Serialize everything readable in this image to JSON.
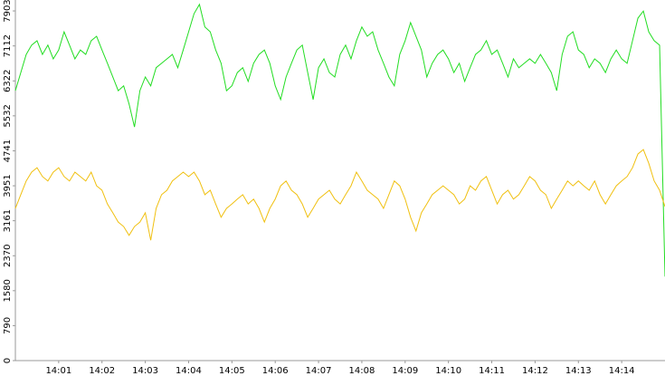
{
  "chart_data": {
    "type": "line",
    "xlim": [
      0,
      15
    ],
    "ylim": [
      0,
      8150
    ],
    "yticks": [
      0,
      790,
      1580,
      2370,
      3161,
      3951,
      4741,
      5532,
      6322,
      7112,
      7903
    ],
    "xticks": [
      {
        "value": 1,
        "label": "14:01"
      },
      {
        "value": 2,
        "label": "14:02"
      },
      {
        "value": 3,
        "label": "14:03"
      },
      {
        "value": 4,
        "label": "14:04"
      },
      {
        "value": 5,
        "label": "14:05"
      },
      {
        "value": 6,
        "label": "14:06"
      },
      {
        "value": 7,
        "label": "14:07"
      },
      {
        "value": 8,
        "label": "14:08"
      },
      {
        "value": 9,
        "label": "14:09"
      },
      {
        "value": 10,
        "label": "14:10"
      },
      {
        "value": 11,
        "label": "14:11"
      },
      {
        "value": 12,
        "label": "14:12"
      },
      {
        "value": 13,
        "label": "14:13"
      },
      {
        "value": 14,
        "label": "14:14"
      }
    ],
    "x": [
      0,
      0.125,
      0.25,
      0.375,
      0.5,
      0.625,
      0.75,
      0.875,
      1,
      1.125,
      1.25,
      1.375,
      1.5,
      1.625,
      1.75,
      1.875,
      2,
      2.125,
      2.25,
      2.375,
      2.5,
      2.625,
      2.75,
      2.875,
      3,
      3.125,
      3.25,
      3.375,
      3.5,
      3.625,
      3.75,
      3.875,
      4,
      4.125,
      4.25,
      4.375,
      4.5,
      4.625,
      4.75,
      4.875,
      5,
      5.125,
      5.25,
      5.375,
      5.5,
      5.625,
      5.75,
      5.875,
      6,
      6.125,
      6.25,
      6.375,
      6.5,
      6.625,
      6.75,
      6.875,
      7,
      7.125,
      7.25,
      7.375,
      7.5,
      7.625,
      7.75,
      7.875,
      8,
      8.125,
      8.25,
      8.375,
      8.5,
      8.625,
      8.75,
      8.875,
      9,
      9.125,
      9.25,
      9.375,
      9.5,
      9.625,
      9.75,
      9.875,
      10,
      10.125,
      10.25,
      10.375,
      10.5,
      10.625,
      10.75,
      10.875,
      11,
      11.125,
      11.25,
      11.375,
      11.5,
      11.625,
      11.75,
      11.875,
      12,
      12.125,
      12.25,
      12.375,
      12.5,
      12.625,
      12.75,
      12.875,
      13,
      13.125,
      13.25,
      13.375,
      13.5,
      13.625,
      13.75,
      13.875,
      14,
      14.125,
      14.25,
      14.375,
      14.5,
      14.625,
      14.75,
      14.875,
      15
    ],
    "series": [
      {
        "color": "#22dd22",
        "values": [
          6100,
          6510,
          6920,
          7130,
          7230,
          6920,
          7130,
          6820,
          7020,
          7430,
          7130,
          6820,
          7020,
          6920,
          7230,
          7330,
          7020,
          6720,
          6410,
          6100,
          6210,
          5800,
          5280,
          6100,
          6410,
          6210,
          6620,
          6720,
          6820,
          6920,
          6620,
          7020,
          7430,
          7840,
          8050,
          7540,
          7430,
          7020,
          6720,
          6100,
          6210,
          6510,
          6620,
          6310,
          6720,
          6920,
          7020,
          6720,
          6210,
          5900,
          6410,
          6720,
          7020,
          7130,
          6510,
          5900,
          6620,
          6820,
          6510,
          6410,
          6920,
          7130,
          6820,
          7230,
          7540,
          7330,
          7430,
          7020,
          6720,
          6410,
          6210,
          6920,
          7230,
          7640,
          7330,
          7020,
          6410,
          6720,
          6920,
          7020,
          6820,
          6510,
          6720,
          6310,
          6620,
          6920,
          7020,
          7230,
          6920,
          7020,
          6720,
          6410,
          6820,
          6620,
          6720,
          6820,
          6720,
          6920,
          6720,
          6510,
          6100,
          6920,
          7330,
          7430,
          7020,
          6920,
          6620,
          6820,
          6720,
          6510,
          6820,
          7020,
          6820,
          6720,
          7230,
          7740,
          7900,
          7430,
          7230,
          7130,
          1900
        ]
      },
      {
        "color": "#f0c010",
        "values": [
          3440,
          3750,
          4060,
          4260,
          4360,
          4160,
          4060,
          4260,
          4360,
          4160,
          4060,
          4260,
          4160,
          4060,
          4260,
          3950,
          3850,
          3540,
          3340,
          3130,
          3030,
          2830,
          3030,
          3130,
          3340,
          2720,
          3440,
          3750,
          3850,
          4060,
          4160,
          4260,
          4160,
          4260,
          4060,
          3750,
          3850,
          3540,
          3240,
          3440,
          3540,
          3650,
          3750,
          3540,
          3650,
          3440,
          3130,
          3440,
          3650,
          3950,
          4060,
          3850,
          3750,
          3540,
          3240,
          3440,
          3650,
          3750,
          3850,
          3650,
          3540,
          3750,
          3950,
          4260,
          4060,
          3850,
          3750,
          3650,
          3440,
          3750,
          4060,
          3950,
          3650,
          3240,
          2930,
          3340,
          3540,
          3750,
          3850,
          3950,
          3850,
          3750,
          3540,
          3650,
          3950,
          3850,
          4060,
          4160,
          3850,
          3540,
          3750,
          3850,
          3650,
          3750,
          3950,
          4160,
          4060,
          3850,
          3750,
          3440,
          3650,
          3850,
          4060,
          3950,
          4060,
          3950,
          3850,
          4060,
          3750,
          3540,
          3750,
          3950,
          4060,
          4160,
          4360,
          4670,
          4770,
          4460,
          4060,
          3850,
          3480
        ]
      }
    ]
  }
}
